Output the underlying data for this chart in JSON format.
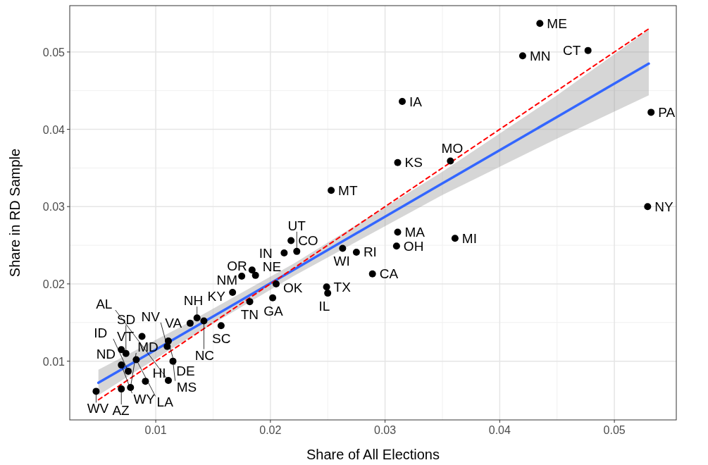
{
  "chart_data": {
    "type": "scatter",
    "xlabel": "Share of All Elections",
    "ylabel": "Share in RD Sample",
    "xlim": [
      0.0025,
      0.0554
    ],
    "ylim": [
      0.0024,
      0.056
    ],
    "xticks": [
      0.01,
      0.02,
      0.03,
      0.04,
      0.05
    ],
    "yticks": [
      0.01,
      0.02,
      0.03,
      0.04,
      0.05
    ],
    "grid": true,
    "series": [
      {
        "color": "#000000",
        "marker": "circle",
        "x": [
          0.0435,
          0.0477,
          0.042,
          0.0315,
          0.0532,
          0.0311,
          0.0357,
          0.0253,
          0.0529,
          0.0311,
          0.0361,
          0.031,
          0.0218,
          0.0212,
          0.0223,
          0.0263,
          0.0275,
          0.0289,
          0.0184,
          0.0175,
          0.0187,
          0.0205,
          0.0167,
          0.0182,
          0.0202,
          0.0249,
          0.025,
          0.0157,
          0.0136,
          0.013,
          0.0142,
          0.0088,
          0.0111,
          0.011,
          0.007,
          0.0074,
          0.0115,
          0.007,
          0.0083,
          0.0076,
          0.0091,
          0.0111,
          0.0048,
          0.007,
          0.0078
        ],
        "values": [
          0.0537,
          0.0502,
          0.0495,
          0.0436,
          0.0422,
          0.0357,
          0.0359,
          0.0321,
          0.03,
          0.0267,
          0.0259,
          0.0249,
          0.0256,
          0.024,
          0.0242,
          0.0246,
          0.0241,
          0.0213,
          0.0218,
          0.021,
          0.0211,
          0.02,
          0.0189,
          0.0177,
          0.0182,
          0.0196,
          0.0188,
          0.0146,
          0.0156,
          0.0149,
          0.0152,
          0.0132,
          0.0126,
          0.0119,
          0.0115,
          0.011,
          0.01,
          0.0095,
          0.0102,
          0.0087,
          0.0074,
          0.0075,
          0.0061,
          0.0064,
          0.0066
        ]
      },
      {
        "type": "line",
        "color": "#3366ff",
        "x": [
          0.005,
          0.012,
          0.022,
          0.035,
          0.045,
          0.053
        ],
        "values": [
          0.0072,
          0.0132,
          0.0218,
          0.033,
          0.0416,
          0.0485
        ],
        "lower": [
          0.0056,
          0.0122,
          0.021,
          0.0315,
          0.0388,
          0.0444
        ],
        "upper": [
          0.0089,
          0.0143,
          0.0226,
          0.0345,
          0.0444,
          0.0529
        ]
      },
      {
        "type": "line",
        "color": "#ff0000",
        "line_style": "dashed",
        "x": [
          0.005,
          0.053
        ],
        "values": [
          0.005,
          0.053
        ]
      }
    ],
    "annotations": [
      {
        "text": "ME",
        "x": 0.0435,
        "y": 0.0537
      },
      {
        "text": "CT",
        "x": 0.0477,
        "y": 0.0502
      },
      {
        "text": "MN",
        "x": 0.042,
        "y": 0.0495
      },
      {
        "text": "IA",
        "x": 0.0315,
        "y": 0.0436
      },
      {
        "text": "PA",
        "x": 0.0532,
        "y": 0.0422
      },
      {
        "text": "KS",
        "x": 0.0311,
        "y": 0.0357
      },
      {
        "text": "MO",
        "x": 0.0357,
        "y": 0.0359
      },
      {
        "text": "MT",
        "x": 0.0253,
        "y": 0.0321
      },
      {
        "text": "NY",
        "x": 0.0529,
        "y": 0.03
      },
      {
        "text": "MA",
        "x": 0.0311,
        "y": 0.0267
      },
      {
        "text": "MI",
        "x": 0.0361,
        "y": 0.0259
      },
      {
        "text": "OH",
        "x": 0.031,
        "y": 0.0249
      },
      {
        "text": "CO",
        "x": 0.0218,
        "y": 0.0256
      },
      {
        "text": "IN",
        "x": 0.0212,
        "y": 0.024
      },
      {
        "text": "UT",
        "x": 0.0223,
        "y": 0.0242
      },
      {
        "text": "WI",
        "x": 0.0263,
        "y": 0.0246
      },
      {
        "text": "RI",
        "x": 0.0275,
        "y": 0.0241
      },
      {
        "text": "CA",
        "x": 0.0289,
        "y": 0.0213
      },
      {
        "text": "OR",
        "x": 0.0184,
        "y": 0.0218
      },
      {
        "text": "NM",
        "x": 0.0175,
        "y": 0.021
      },
      {
        "text": "NE",
        "x": 0.0187,
        "y": 0.0211
      },
      {
        "text": "OK",
        "x": 0.0205,
        "y": 0.02
      },
      {
        "text": "KY",
        "x": 0.0167,
        "y": 0.0189
      },
      {
        "text": "TN",
        "x": 0.0182,
        "y": 0.0177
      },
      {
        "text": "GA",
        "x": 0.0202,
        "y": 0.0182
      },
      {
        "text": "TX",
        "x": 0.0249,
        "y": 0.0196
      },
      {
        "text": "IL",
        "x": 0.025,
        "y": 0.0188
      },
      {
        "text": "SC",
        "x": 0.0157,
        "y": 0.0146
      },
      {
        "text": "NH",
        "x": 0.0136,
        "y": 0.0156
      },
      {
        "text": "VA",
        "x": 0.013,
        "y": 0.0149
      },
      {
        "text": "NC",
        "x": 0.0142,
        "y": 0.0152
      },
      {
        "text": "VT",
        "x": 0.0088,
        "y": 0.0132
      },
      {
        "text": "DE",
        "x": 0.0111,
        "y": 0.0126
      },
      {
        "text": "NV",
        "x": 0.011,
        "y": 0.0119
      },
      {
        "text": "ND",
        "x": 0.007,
        "y": 0.0115
      },
      {
        "text": "SD",
        "x": 0.0074,
        "y": 0.011
      },
      {
        "text": "MS",
        "x": 0.0115,
        "y": 0.01
      },
      {
        "text": "WY",
        "x": 0.007,
        "y": 0.0095
      },
      {
        "text": "LA",
        "x": 0.0083,
        "y": 0.0102
      },
      {
        "text": "ID",
        "x": 0.0076,
        "y": 0.0087
      },
      {
        "text": "HI",
        "x": 0.0091,
        "y": 0.0074
      },
      {
        "text": "AL",
        "x": 0.0111,
        "y": 0.0075
      },
      {
        "text": "WV",
        "x": 0.0048,
        "y": 0.0061
      },
      {
        "text": "AZ",
        "x": 0.007,
        "y": 0.0064
      },
      {
        "text": "MD",
        "x": 0.0078,
        "y": 0.0066
      }
    ]
  }
}
